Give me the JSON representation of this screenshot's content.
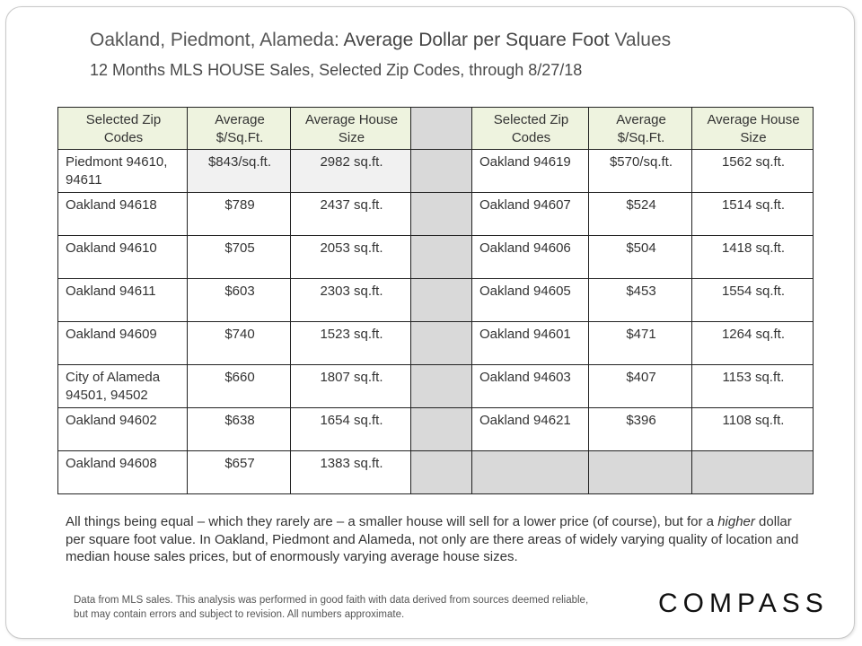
{
  "title": {
    "part1": "Oakland, Piedmont, Alameda: ",
    "part2": "Average Dollar per Square Foot",
    "part3": " Values"
  },
  "subtitle": {
    "part1": "12 Months MLS ",
    "part2": "HOUSE",
    "part3": " Sales, Selected Zip Codes, through 8/27/18"
  },
  "table": {
    "headers": [
      "Selected Zip Codes",
      "Average $/Sq.Ft.",
      "Average House Size"
    ],
    "left_rows": [
      {
        "zip": "Piedmont 94610, 94611",
        "ppsf": "$843/sq.ft.",
        "size": "2982 sq.ft."
      },
      {
        "zip": "Oakland 94618",
        "ppsf": "$789",
        "size": "2437 sq.ft."
      },
      {
        "zip": "Oakland 94610",
        "ppsf": "$705",
        "size": "2053 sq.ft."
      },
      {
        "zip": "Oakland 94611",
        "ppsf": "$603",
        "size": "2303 sq.ft."
      },
      {
        "zip": "Oakland 94609",
        "ppsf": "$740",
        "size": "1523 sq.ft."
      },
      {
        "zip": "City of Alameda 94501, 94502",
        "ppsf": "$660",
        "size": "1807 sq.ft."
      },
      {
        "zip": "Oakland 94602",
        "ppsf": "$638",
        "size": "1654 sq.ft."
      },
      {
        "zip": "Oakland 94608",
        "ppsf": "$657",
        "size": "1383 sq.ft."
      }
    ],
    "right_rows": [
      {
        "zip": "Oakland 94619",
        "ppsf": "$570/sq.ft.",
        "size": "1562 sq.ft."
      },
      {
        "zip": "Oakland 94607",
        "ppsf": "$524",
        "size": "1514 sq.ft."
      },
      {
        "zip": "Oakland 94606",
        "ppsf": "$504",
        "size": "1418 sq.ft."
      },
      {
        "zip": "Oakland 94605",
        "ppsf": "$453",
        "size": "1554 sq.ft."
      },
      {
        "zip": "Oakland 94601",
        "ppsf": "$471",
        "size": "1264 sq.ft."
      },
      {
        "zip": "Oakland 94603",
        "ppsf": "$407",
        "size": "1153 sq.ft."
      },
      {
        "zip": "Oakland 94621",
        "ppsf": "$396",
        "size": "1108 sq.ft."
      }
    ]
  },
  "note": {
    "part1": "All things being equal – which they rarely are – a smaller house will sell for a lower price (of course), but for a ",
    "italic": "higher",
    "part2": " dollar per square foot value. In Oakland, Piedmont and Alameda, not only are there areas of widely varying quality of location and median house sales prices, but of enormously varying average house sizes."
  },
  "footer": "Data from MLS sales. This analysis was performed in good faith with data derived from sources deemed reliable, but may contain errors and subject to revision. All numbers approximate.",
  "logo": "COMPASS",
  "colors": {
    "header_bg": "#eef3df",
    "spacer_gray": "#d9d9d9",
    "highlight_cell": "#f1f1f1"
  }
}
